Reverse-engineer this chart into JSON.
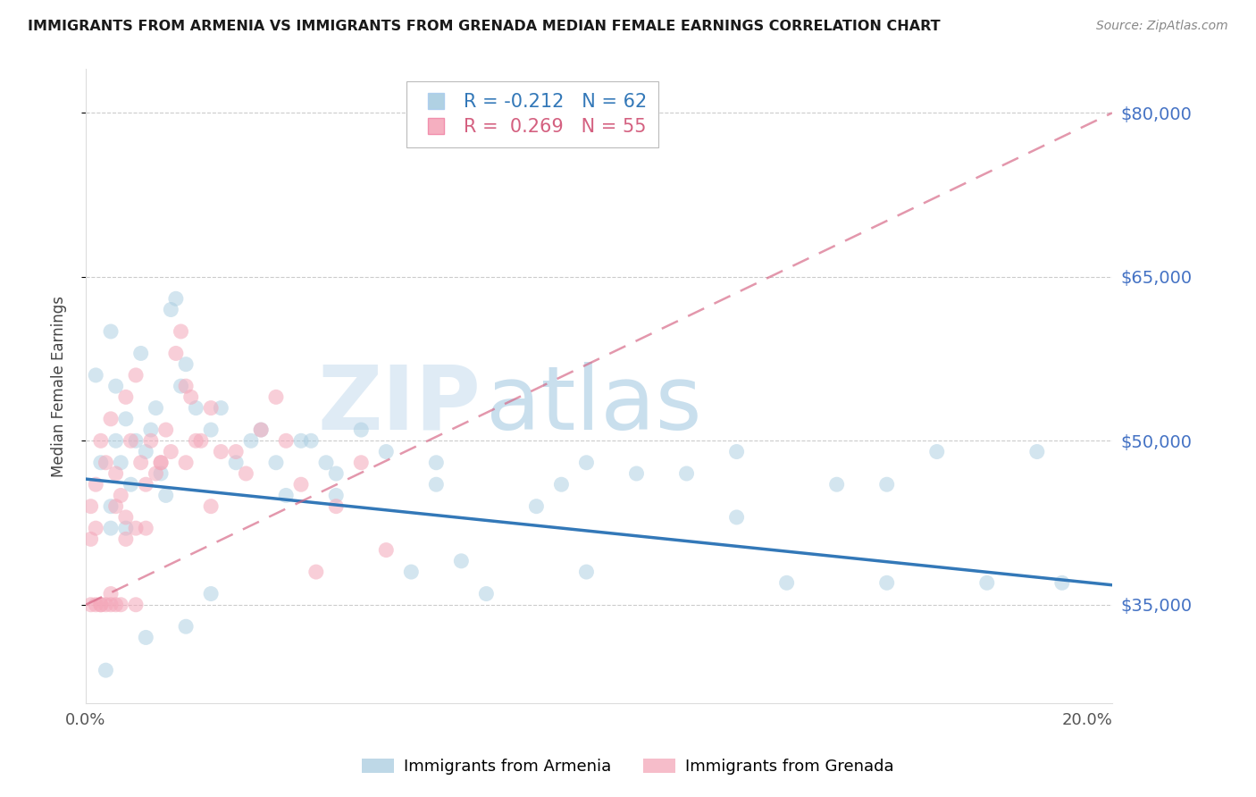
{
  "title": "IMMIGRANTS FROM ARMENIA VS IMMIGRANTS FROM GRENADA MEDIAN FEMALE EARNINGS CORRELATION CHART",
  "source": "Source: ZipAtlas.com",
  "ylabel": "Median Female Earnings",
  "legend_label_1": "Immigrants from Armenia",
  "legend_label_2": "Immigrants from Grenada",
  "R1": -0.212,
  "N1": 62,
  "R2": 0.269,
  "N2": 55,
  "color1": "#a8cce0",
  "color2": "#f4a7b9",
  "trendline1_color": "#3378b8",
  "trendline2_color": "#d46080",
  "yticks": [
    35000,
    50000,
    65000,
    80000
  ],
  "ytick_labels": [
    "$35,000",
    "$50,000",
    "$65,000",
    "$80,000"
  ],
  "xmin": 0.0,
  "xmax": 0.205,
  "ymin": 26000,
  "ymax": 84000,
  "xtick_vals": [
    0.0,
    0.05,
    0.1,
    0.15,
    0.2
  ],
  "xtick_labels": [
    "0.0%",
    "",
    "",
    "",
    "20.0%"
  ],
  "armenia_x": [
    0.002,
    0.003,
    0.004,
    0.005,
    0.005,
    0.006,
    0.006,
    0.007,
    0.008,
    0.009,
    0.01,
    0.011,
    0.012,
    0.013,
    0.014,
    0.015,
    0.016,
    0.017,
    0.018,
    0.019,
    0.02,
    0.022,
    0.025,
    0.027,
    0.03,
    0.033,
    0.035,
    0.038,
    0.04,
    0.043,
    0.045,
    0.048,
    0.05,
    0.055,
    0.06,
    0.065,
    0.07,
    0.075,
    0.08,
    0.09,
    0.095,
    0.1,
    0.11,
    0.12,
    0.13,
    0.14,
    0.15,
    0.16,
    0.17,
    0.18,
    0.19,
    0.195,
    0.005,
    0.008,
    0.012,
    0.02,
    0.025,
    0.05,
    0.07,
    0.1,
    0.13,
    0.16
  ],
  "armenia_y": [
    56000,
    48000,
    29000,
    60000,
    44000,
    55000,
    50000,
    48000,
    52000,
    46000,
    50000,
    58000,
    49000,
    51000,
    53000,
    47000,
    45000,
    62000,
    63000,
    55000,
    57000,
    53000,
    51000,
    53000,
    48000,
    50000,
    51000,
    48000,
    45000,
    50000,
    50000,
    48000,
    47000,
    51000,
    49000,
    38000,
    48000,
    39000,
    36000,
    44000,
    46000,
    48000,
    47000,
    47000,
    43000,
    37000,
    46000,
    46000,
    49000,
    37000,
    49000,
    37000,
    42000,
    42000,
    32000,
    33000,
    36000,
    45000,
    46000,
    38000,
    49000,
    37000
  ],
  "grenada_x": [
    0.001,
    0.001,
    0.002,
    0.002,
    0.003,
    0.003,
    0.004,
    0.004,
    0.005,
    0.005,
    0.006,
    0.006,
    0.007,
    0.007,
    0.008,
    0.008,
    0.009,
    0.01,
    0.01,
    0.011,
    0.012,
    0.013,
    0.014,
    0.015,
    0.016,
    0.017,
    0.018,
    0.019,
    0.02,
    0.021,
    0.022,
    0.023,
    0.025,
    0.027,
    0.03,
    0.032,
    0.035,
    0.038,
    0.04,
    0.043,
    0.046,
    0.05,
    0.055,
    0.06,
    0.001,
    0.002,
    0.003,
    0.005,
    0.006,
    0.008,
    0.01,
    0.012,
    0.015,
    0.02,
    0.025
  ],
  "grenada_y": [
    44000,
    35000,
    46000,
    35000,
    50000,
    35000,
    48000,
    35000,
    52000,
    35000,
    47000,
    35000,
    45000,
    35000,
    54000,
    43000,
    50000,
    56000,
    35000,
    48000,
    46000,
    50000,
    47000,
    48000,
    51000,
    49000,
    58000,
    60000,
    55000,
    54000,
    50000,
    50000,
    53000,
    49000,
    49000,
    47000,
    51000,
    54000,
    50000,
    46000,
    38000,
    44000,
    48000,
    40000,
    41000,
    42000,
    35000,
    36000,
    44000,
    41000,
    42000,
    42000,
    48000,
    48000,
    44000
  ],
  "arm_trendline_x0": 0.0,
  "arm_trendline_x1": 0.205,
  "arm_trendline_y0": 46500,
  "arm_trendline_y1": 36800,
  "gren_trendline_x0": 0.0,
  "gren_trendline_x1": 0.205,
  "gren_trendline_y0": 35000,
  "gren_trendline_y1": 80000
}
